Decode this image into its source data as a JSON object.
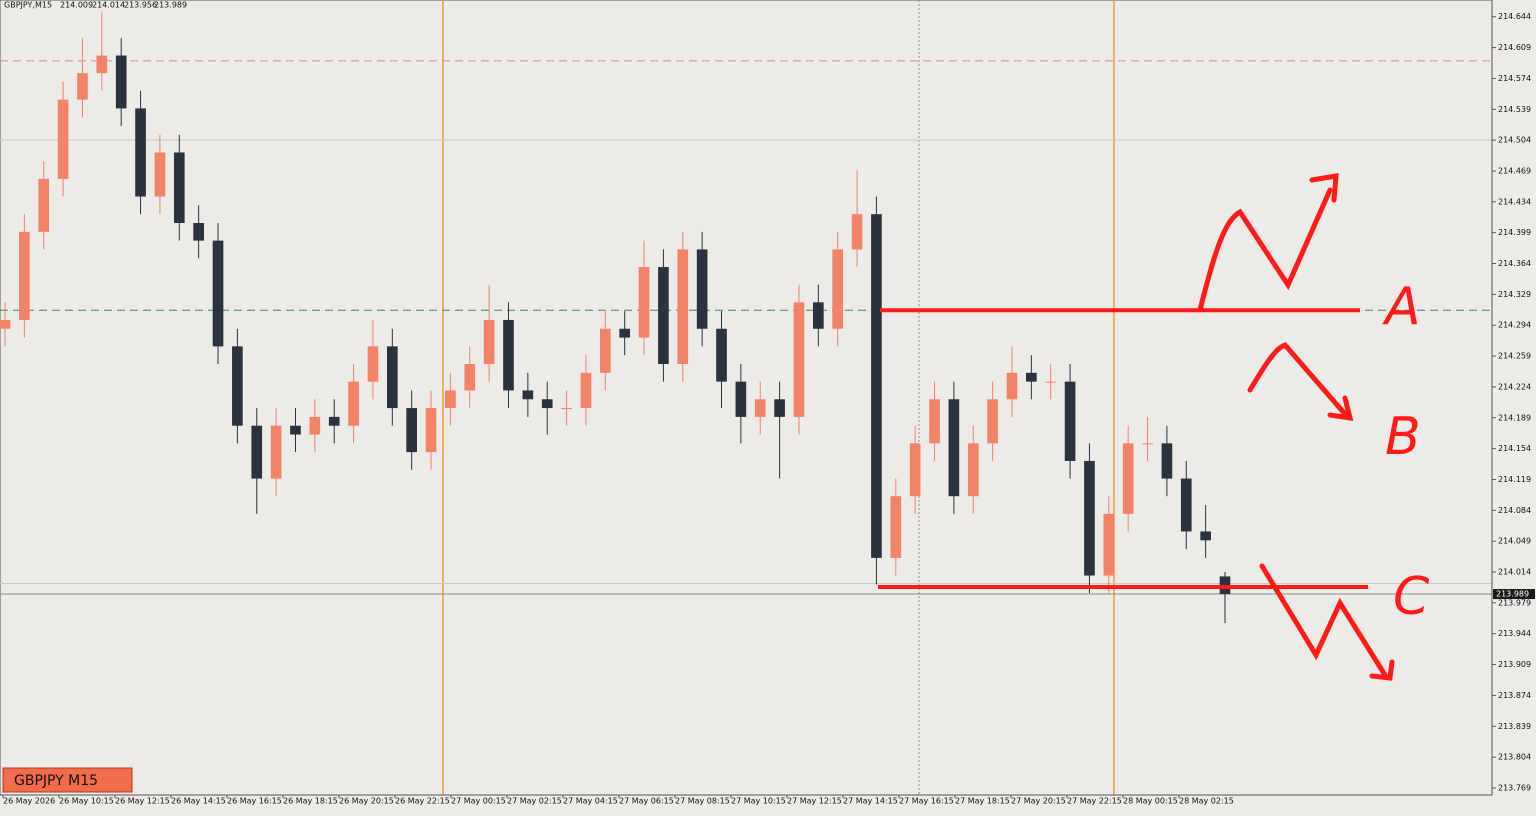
{
  "chart_data": {
    "type": "candlestick",
    "symbol_header": "GBPJPY,M15",
    "symbol_label": "GBPJPY M15",
    "bull_color": "#f08368",
    "bear_color": "#2a323d",
    "categories": [
      "26 May 2026",
      "26 May 10:15",
      "26 May 12:15",
      "26 May 14:15",
      "26 May 16:15",
      "26 May 18:15",
      "26 May 20:15",
      "26 May 22:15",
      "27 May 00:15",
      "27 May 02:15",
      "27 May 04:15",
      "27 May 06:15",
      "27 May 08:15",
      "27 May 10:15",
      "27 May 12:15",
      "27 May 14:15",
      "27 May 16:15",
      "27 May 18:15",
      "27 May 20:15",
      "27 May 22:15",
      "28 May 00:15",
      "28 May 02:15"
    ],
    "candles": [
      [
        214.29,
        214.32,
        214.27,
        214.3
      ],
      [
        214.3,
        214.42,
        214.28,
        214.4
      ],
      [
        214.4,
        214.48,
        214.38,
        214.46
      ],
      [
        214.46,
        214.57,
        214.44,
        214.55
      ],
      [
        214.55,
        214.62,
        214.53,
        214.58
      ],
      [
        214.58,
        214.65,
        214.56,
        214.6
      ],
      [
        214.6,
        214.62,
        214.52,
        214.54
      ],
      [
        214.54,
        214.56,
        214.42,
        214.44
      ],
      [
        214.44,
        214.51,
        214.42,
        214.49
      ],
      [
        214.49,
        214.51,
        214.39,
        214.41
      ],
      [
        214.41,
        214.43,
        214.37,
        214.39
      ],
      [
        214.39,
        214.41,
        214.25,
        214.27
      ],
      [
        214.27,
        214.29,
        214.16,
        214.18
      ],
      [
        214.18,
        214.2,
        214.08,
        214.12
      ],
      [
        214.12,
        214.2,
        214.1,
        214.18
      ],
      [
        214.18,
        214.2,
        214.15,
        214.17
      ],
      [
        214.17,
        214.21,
        214.15,
        214.19
      ],
      [
        214.19,
        214.21,
        214.16,
        214.18
      ],
      [
        214.18,
        214.25,
        214.16,
        214.23
      ],
      [
        214.23,
        214.3,
        214.21,
        214.27
      ],
      [
        214.27,
        214.29,
        214.18,
        214.2
      ],
      [
        214.2,
        214.22,
        214.13,
        214.15
      ],
      [
        214.15,
        214.22,
        214.13,
        214.2
      ],
      [
        214.2,
        214.24,
        214.18,
        214.22
      ],
      [
        214.22,
        214.27,
        214.2,
        214.25
      ],
      [
        214.25,
        214.34,
        214.23,
        214.3
      ],
      [
        214.3,
        214.32,
        214.2,
        214.22
      ],
      [
        214.22,
        214.24,
        214.19,
        214.21
      ],
      [
        214.21,
        214.23,
        214.17,
        214.2
      ],
      [
        214.2,
        214.22,
        214.18,
        214.2
      ],
      [
        214.2,
        214.26,
        214.18,
        214.24
      ],
      [
        214.24,
        214.31,
        214.22,
        214.29
      ],
      [
        214.29,
        214.31,
        214.26,
        214.28
      ],
      [
        214.28,
        214.39,
        214.26,
        214.36
      ],
      [
        214.36,
        214.38,
        214.23,
        214.25
      ],
      [
        214.25,
        214.4,
        214.23,
        214.38
      ],
      [
        214.38,
        214.4,
        214.27,
        214.29
      ],
      [
        214.29,
        214.31,
        214.2,
        214.23
      ],
      [
        214.23,
        214.25,
        214.16,
        214.19
      ],
      [
        214.19,
        214.23,
        214.17,
        214.21
      ],
      [
        214.21,
        214.23,
        214.12,
        214.19
      ],
      [
        214.19,
        214.34,
        214.17,
        214.32
      ],
      [
        214.32,
        214.34,
        214.27,
        214.29
      ],
      [
        214.29,
        214.4,
        214.27,
        214.38
      ],
      [
        214.38,
        214.47,
        214.36,
        214.42
      ],
      [
        214.42,
        214.44,
        214.0,
        214.03
      ],
      [
        214.03,
        214.12,
        214.01,
        214.1
      ],
      [
        214.1,
        214.18,
        214.08,
        214.16
      ],
      [
        214.16,
        214.23,
        214.14,
        214.21
      ],
      [
        214.21,
        214.23,
        214.08,
        214.1
      ],
      [
        214.1,
        214.18,
        214.08,
        214.16
      ],
      [
        214.16,
        214.23,
        214.14,
        214.21
      ],
      [
        214.21,
        214.27,
        214.19,
        214.24
      ],
      [
        214.24,
        214.26,
        214.21,
        214.23
      ],
      [
        214.23,
        214.25,
        214.21,
        214.23
      ],
      [
        214.23,
        214.25,
        214.12,
        214.14
      ],
      [
        214.14,
        214.16,
        213.99,
        214.01
      ],
      [
        214.01,
        214.1,
        213.99,
        214.08
      ],
      [
        214.08,
        214.18,
        214.06,
        214.16
      ],
      [
        214.16,
        214.19,
        214.14,
        214.16
      ],
      [
        214.16,
        214.18,
        214.1,
        214.12
      ],
      [
        214.12,
        214.14,
        214.04,
        214.06
      ],
      [
        214.06,
        214.09,
        214.03,
        214.05
      ],
      [
        214.009,
        214.014,
        213.956,
        213.989
      ]
    ],
    "ylim": [
      213.761,
      214.663
    ],
    "yticks": [
      214.644,
      214.609,
      214.574,
      214.539,
      214.504,
      214.469,
      214.434,
      214.399,
      214.364,
      214.329,
      214.294,
      214.259,
      214.224,
      214.189,
      214.154,
      214.119,
      214.084,
      214.049,
      214.014,
      213.979,
      213.944,
      213.909,
      213.874,
      213.839,
      213.804,
      213.769
    ],
    "hlines": [
      {
        "value": 214.594,
        "color": "#e87fa0",
        "dash": true
      },
      {
        "value": 214.311,
        "color": "#3a8a5e",
        "dash": true
      },
      {
        "value": 214.504,
        "color": "#c8c8c8"
      },
      {
        "value": 214.001,
        "color": "#c8c8c8"
      },
      {
        "value": 213.989,
        "color": "#8a8a8a"
      }
    ],
    "annotations": [
      {
        "label": "A",
        "value": 214.311
      },
      {
        "label": "B"
      },
      {
        "label": "C",
        "value": 213.997
      }
    ],
    "annotation_color": "#ff1a1a"
  }
}
